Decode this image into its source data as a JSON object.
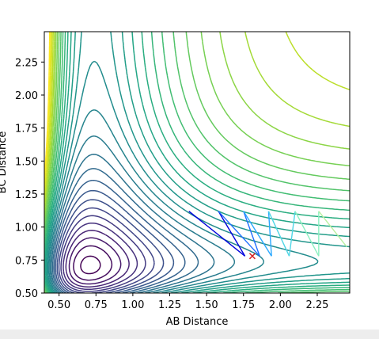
{
  "chart_data": {
    "type": "contour",
    "title": "",
    "xlabel": "AB Distance",
    "ylabel": "BC Distance",
    "xlim": [
      0.4,
      2.47
    ],
    "ylim": [
      0.5,
      2.48
    ],
    "xticks": [
      "0.50",
      "0.75",
      "1.00",
      "1.25",
      "1.50",
      "1.75",
      "2.00",
      "2.25"
    ],
    "yticks": [
      "0.50",
      "0.75",
      "1.00",
      "1.25",
      "1.50",
      "1.75",
      "2.00",
      "2.25"
    ],
    "xtick_values": [
      0.5,
      0.75,
      1.0,
      1.25,
      1.5,
      1.75,
      2.0,
      2.25
    ],
    "ytick_values": [
      0.5,
      0.75,
      1.0,
      1.25,
      1.5,
      1.75,
      2.0,
      2.25
    ],
    "colormap": "viridis",
    "grid": false,
    "trajectory": {
      "x": [
        1.38,
        1.76,
        1.58,
        1.86,
        1.75,
        1.94,
        1.92,
        2.06,
        2.1,
        2.26,
        2.26,
        2.45
      ],
      "y": [
        1.12,
        0.78,
        1.12,
        0.78,
        1.12,
        0.78,
        1.12,
        0.78,
        1.12,
        0.78,
        1.12,
        0.85
      ],
      "colors": [
        "#0000dd",
        "#1f6fff",
        "#2aa8ff",
        "#4fd6e6",
        "#8af0c0",
        "#b8f0a0"
      ]
    },
    "marker": {
      "x": 1.81,
      "y": 0.78,
      "symbol": "x",
      "color": "#d62728"
    }
  }
}
